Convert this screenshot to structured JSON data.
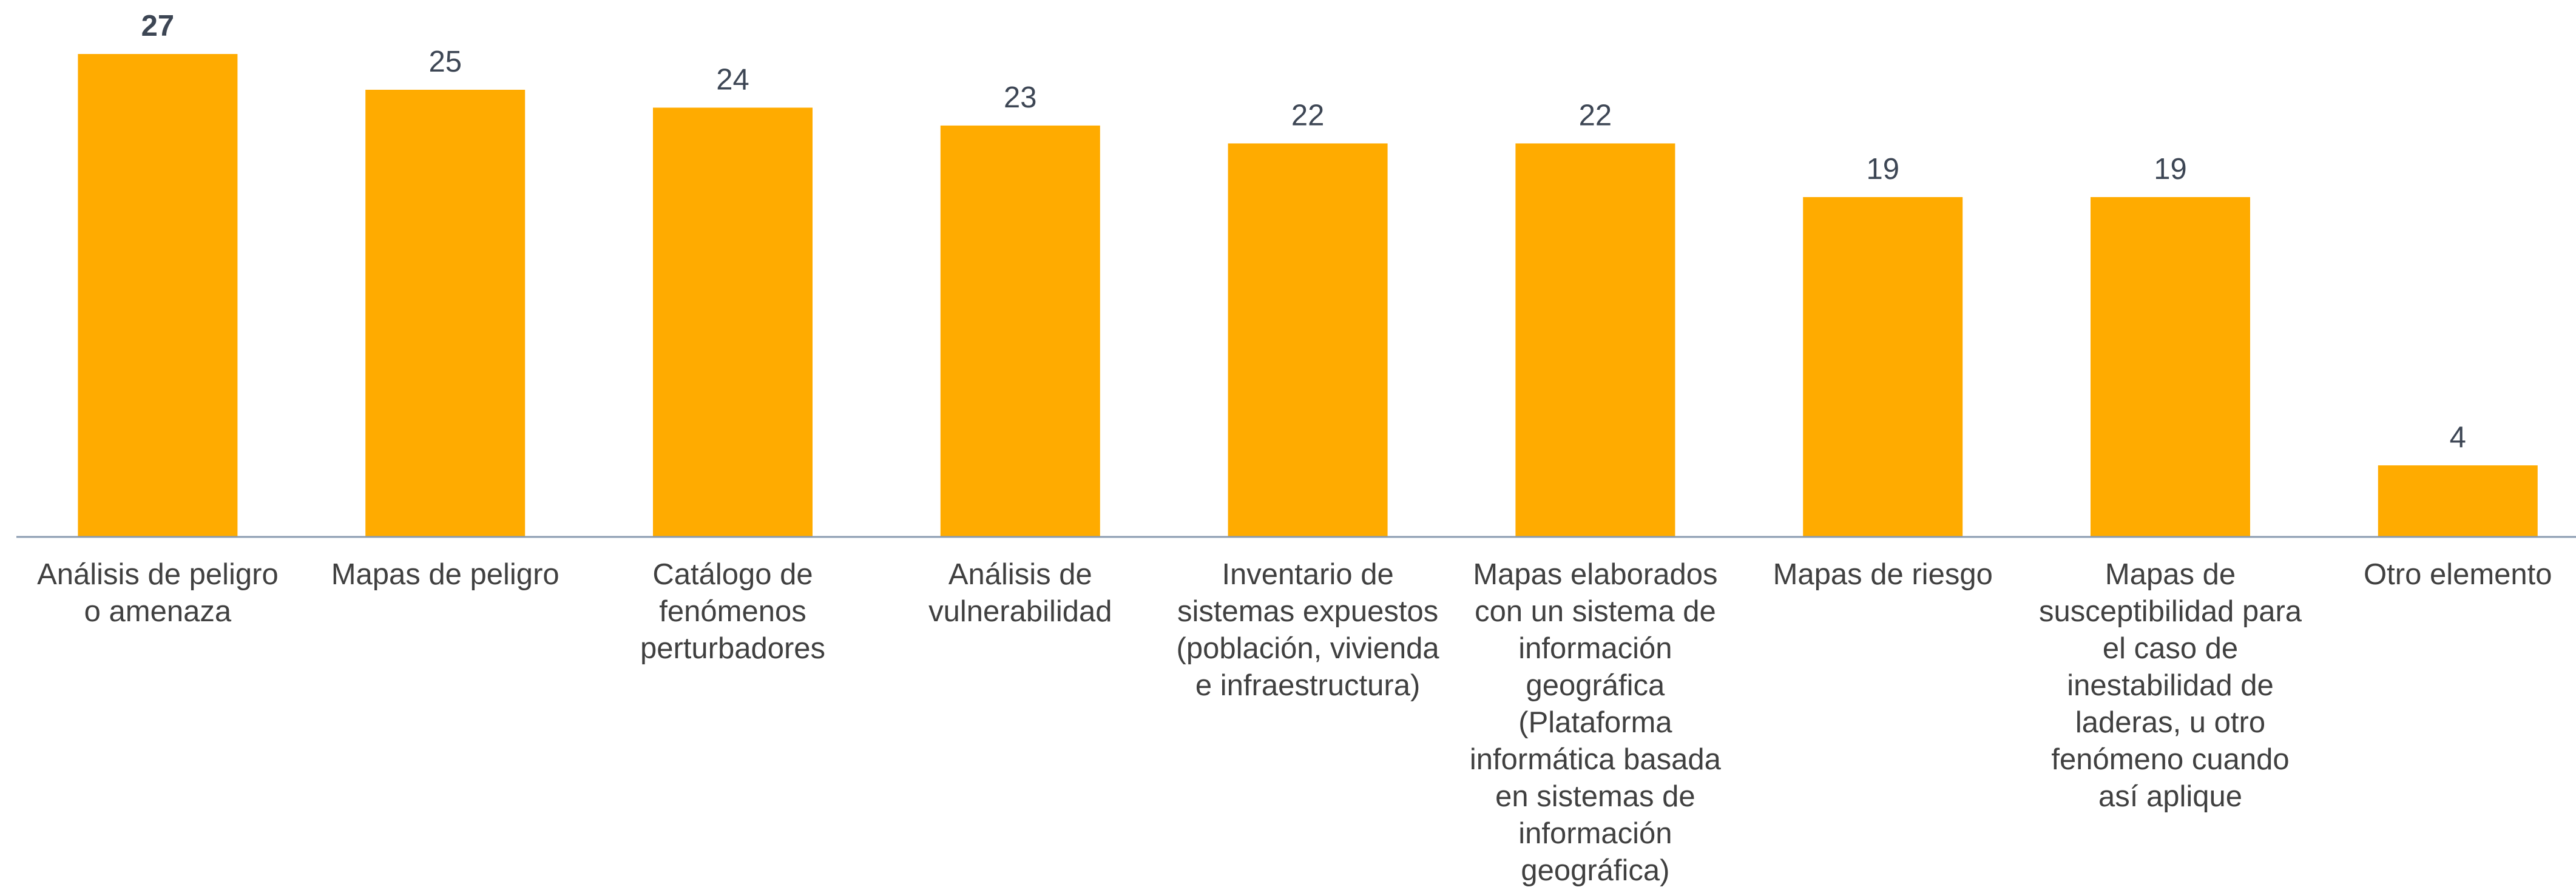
{
  "chart_data": {
    "type": "bar",
    "categories": [
      "Análisis de peligro\no amenaza",
      "Mapas de peligro",
      "Catálogo de\nfenómenos\nperturbadores",
      "Análisis de\nvulnerabilidad",
      "Inventario de\nsistemas expuestos\n(población, vivienda\ne infraestructura)",
      "Mapas elaborados\ncon un sistema de\ninformación\ngeográfica\n(Plataforma\ninformática basada\nen sistemas de\ninformación\ngeográfica)",
      "Mapas de riesgo",
      "Mapas de\nsusceptibilidad para\nel caso de\ninestabilidad de\nladeras, u otro\nfenómeno cuando\nasí aplique",
      "Otro elemento"
    ],
    "values": [
      27,
      25,
      24,
      23,
      22,
      22,
      19,
      19,
      4
    ],
    "color": "#ffab00",
    "ylim": [
      0,
      27
    ]
  }
}
